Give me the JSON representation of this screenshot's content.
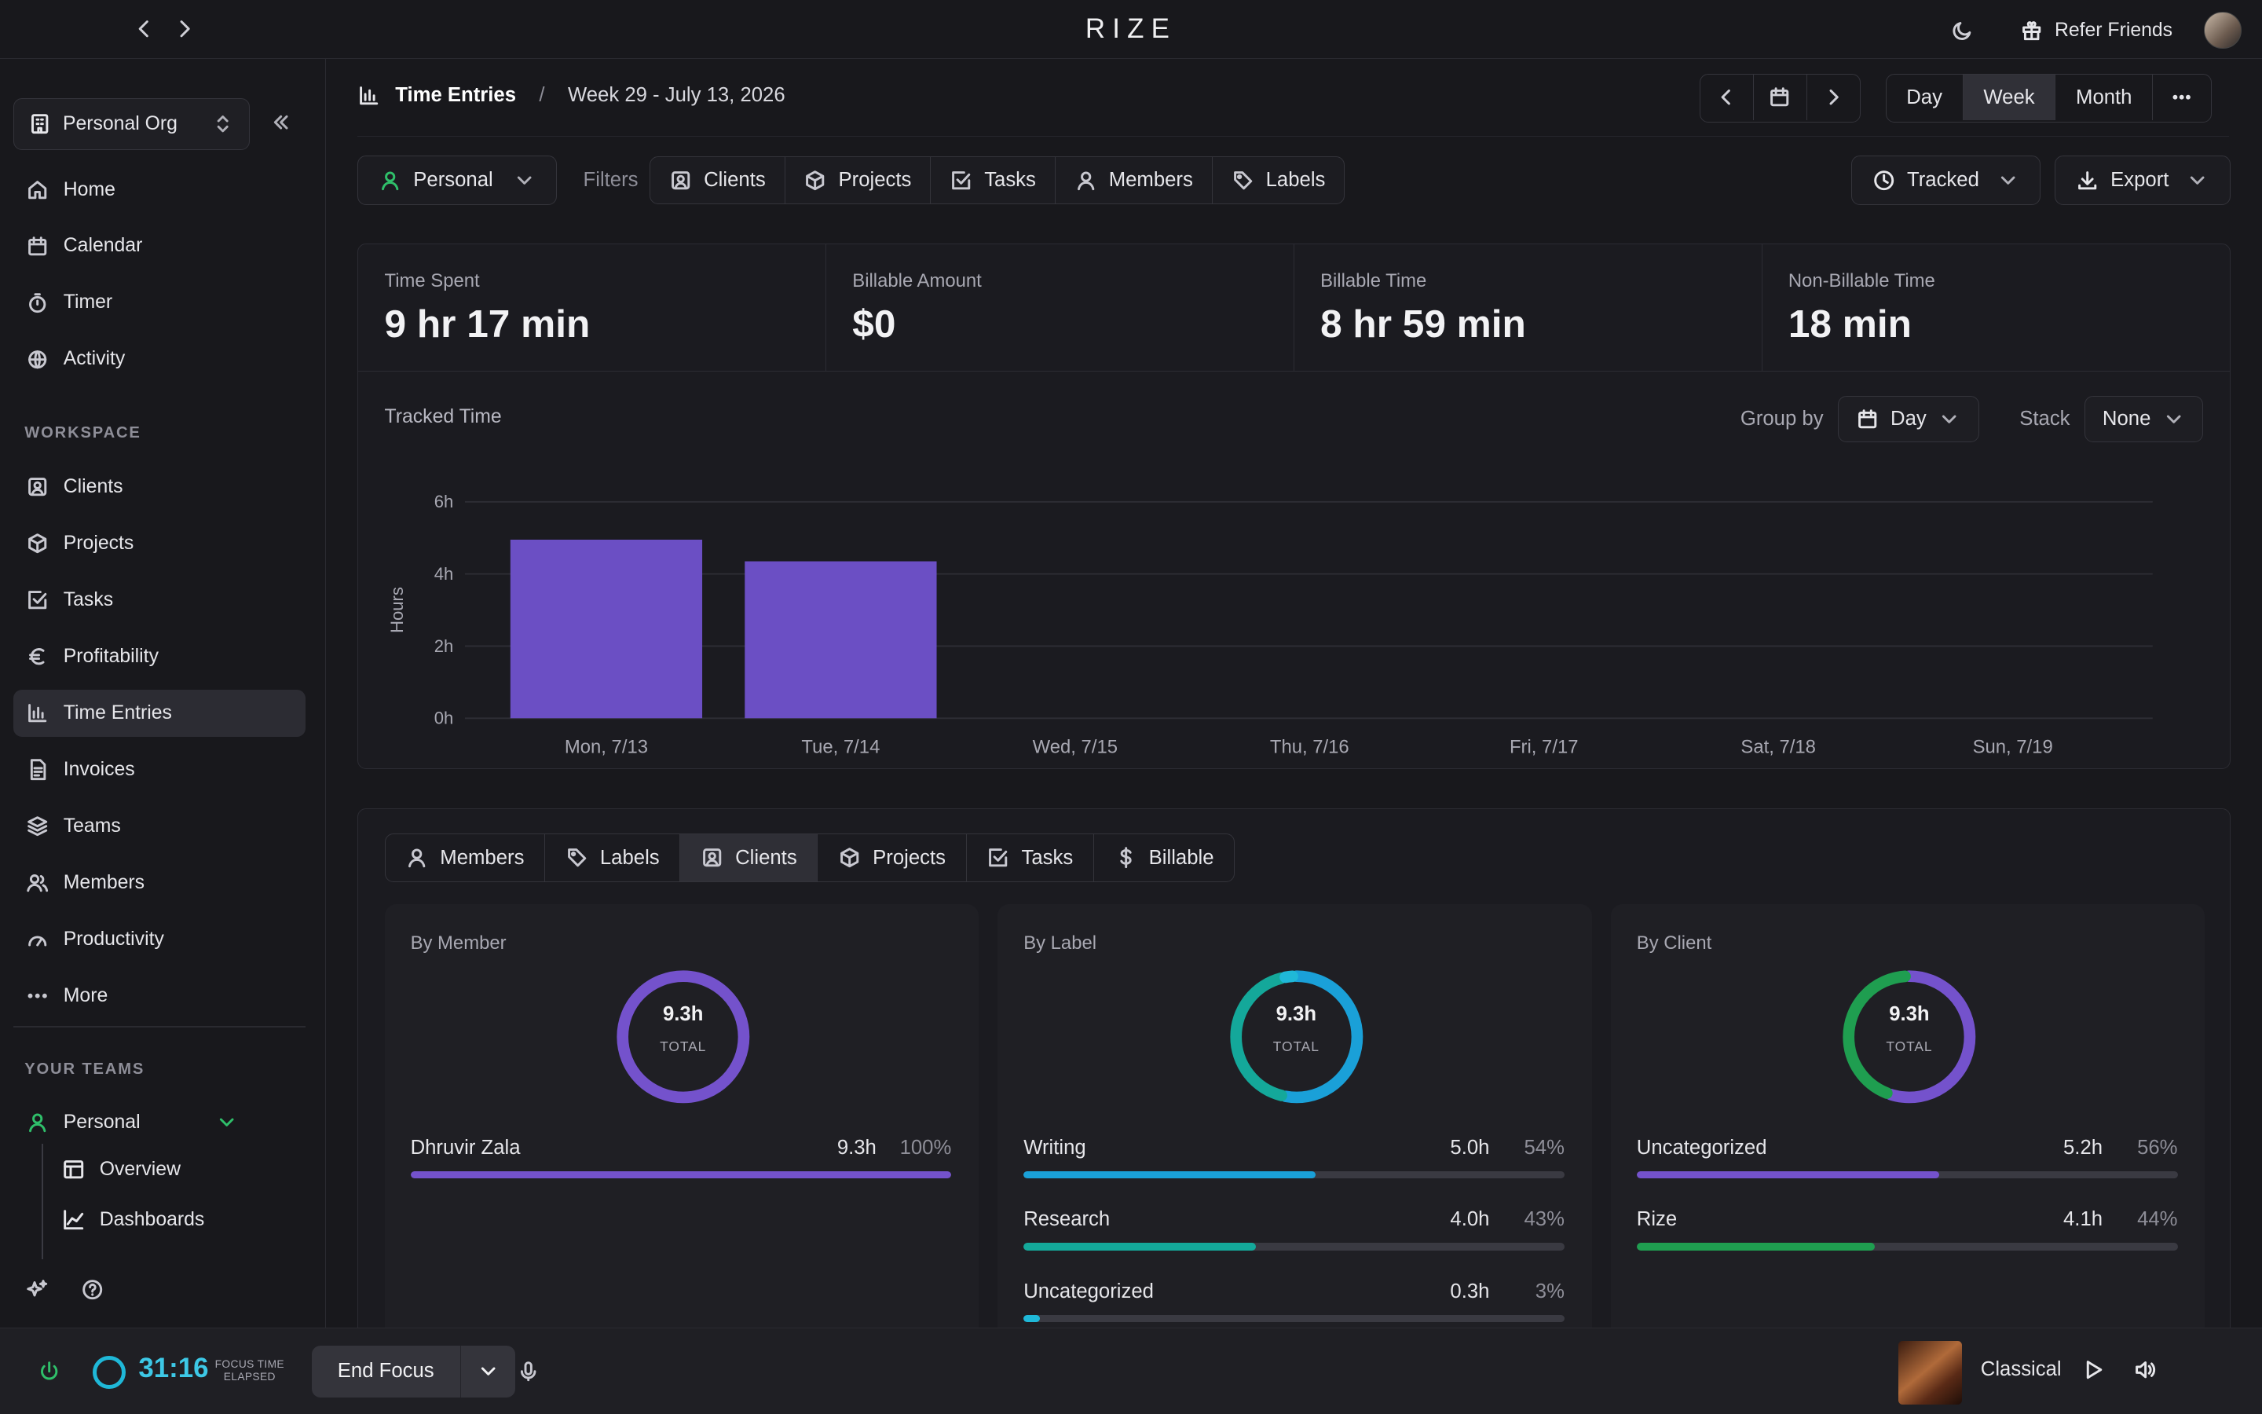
{
  "app": {
    "logo": "RIZE",
    "refer_label": "Refer Friends"
  },
  "sidebar": {
    "org_name": "Personal Org",
    "items_top": [
      {
        "label": "Home",
        "icon": "home-icon"
      },
      {
        "label": "Calendar",
        "icon": "calendar-icon"
      },
      {
        "label": "Timer",
        "icon": "timer-icon"
      },
      {
        "label": "Activity",
        "icon": "globe-icon"
      }
    ],
    "workspace_label": "WORKSPACE",
    "items_workspace": [
      {
        "label": "Clients",
        "icon": "client-icon"
      },
      {
        "label": "Projects",
        "icon": "box-icon"
      },
      {
        "label": "Tasks",
        "icon": "checkbox-icon"
      },
      {
        "label": "Profitability",
        "icon": "euro-icon"
      },
      {
        "label": "Time Entries",
        "icon": "bar-chart-icon",
        "active": true
      },
      {
        "label": "Invoices",
        "icon": "invoice-icon"
      },
      {
        "label": "Teams",
        "icon": "layers-icon"
      },
      {
        "label": "Members",
        "icon": "users-icon"
      },
      {
        "label": "Productivity",
        "icon": "gauge-icon"
      },
      {
        "label": "More",
        "icon": "more-icon"
      }
    ],
    "teams_label": "YOUR TEAMS",
    "team": {
      "name": "Personal",
      "sub_items": [
        {
          "label": "Overview",
          "icon": "table-icon"
        },
        {
          "label": "Dashboards",
          "icon": "line-chart-icon"
        }
      ]
    }
  },
  "header": {
    "title": "Time Entries",
    "separator": "/",
    "week_label": "Week 29 - July 13, 2026",
    "ranges": [
      "Day",
      "Week",
      "Month"
    ],
    "active_range": "Week"
  },
  "filters": {
    "scope": "Personal",
    "filters_label": "Filters",
    "items": [
      "Clients",
      "Projects",
      "Tasks",
      "Members",
      "Labels"
    ],
    "tracked_label": "Tracked",
    "export_label": "Export"
  },
  "stats": [
    {
      "label": "Time Spent",
      "value": "9 hr 17 min"
    },
    {
      "label": "Billable Amount",
      "value": "$0"
    },
    {
      "label": "Billable Time",
      "value": "8 hr 59 min"
    },
    {
      "label": "Non-Billable Time",
      "value": "18 min"
    }
  ],
  "chart_controls": {
    "title": "Tracked Time",
    "group_by_label": "Group by",
    "group_by_value": "Day",
    "stack_label": "Stack",
    "stack_value": "None"
  },
  "chart_data": {
    "type": "bar",
    "ylabel": "Hours",
    "xlabel": "",
    "ylim": [
      0,
      6
    ],
    "yticks": [
      "0h",
      "2h",
      "4h",
      "6h"
    ],
    "categories": [
      "Mon, 7/13",
      "Tue, 7/14",
      "Wed, 7/15",
      "Thu, 7/16",
      "Fri, 7/17",
      "Sat, 7/18",
      "Sun, 7/19"
    ],
    "values": [
      4.95,
      4.35,
      0,
      0,
      0,
      0,
      0
    ],
    "color": "#6b4fc4",
    "grid": true
  },
  "breakdown": {
    "tabs": [
      {
        "label": "Members",
        "icon": "user-icon"
      },
      {
        "label": "Labels",
        "icon": "tag-icon"
      },
      {
        "label": "Clients",
        "icon": "client-icon",
        "active": true
      },
      {
        "label": "Projects",
        "icon": "box-icon"
      },
      {
        "label": "Tasks",
        "icon": "checkbox-icon"
      },
      {
        "label": "Billable",
        "icon": "dollar-icon"
      }
    ],
    "cards": [
      {
        "title": "By Member",
        "total": "9.3h",
        "total_label": "TOTAL",
        "rows": [
          {
            "name": "Dhruvir Zala",
            "hours": "9.3h",
            "pct": "100%",
            "frac": 1.0,
            "color": "#7452cc"
          }
        ]
      },
      {
        "title": "By Label",
        "total": "9.3h",
        "total_label": "TOTAL",
        "rows": [
          {
            "name": "Writing",
            "hours": "5.0h",
            "pct": "54%",
            "frac": 0.54,
            "color": "#1aa0d8"
          },
          {
            "name": "Research",
            "hours": "4.0h",
            "pct": "43%",
            "frac": 0.43,
            "color": "#14a89a"
          },
          {
            "name": "Uncategorized",
            "hours": "0.3h",
            "pct": "3%",
            "frac": 0.03,
            "color": "#1fb8d8"
          }
        ]
      },
      {
        "title": "By Client",
        "total": "9.3h",
        "total_label": "TOTAL",
        "rows": [
          {
            "name": "Uncategorized",
            "hours": "5.2h",
            "pct": "56%",
            "frac": 0.56,
            "color": "#7452cc"
          },
          {
            "name": "Rize",
            "hours": "4.1h",
            "pct": "44%",
            "frac": 0.44,
            "color": "#1f9e50"
          }
        ]
      }
    ]
  },
  "bottom": {
    "timer": "31:16",
    "focus_label_1": "FOCUS TIME",
    "focus_label_2": "ELAPSED",
    "end_focus": "End Focus",
    "music": "Classical"
  },
  "colors": {
    "accent": "#6b4fc4",
    "timer": "#3dc8e6",
    "green": "#2fbf6a"
  }
}
